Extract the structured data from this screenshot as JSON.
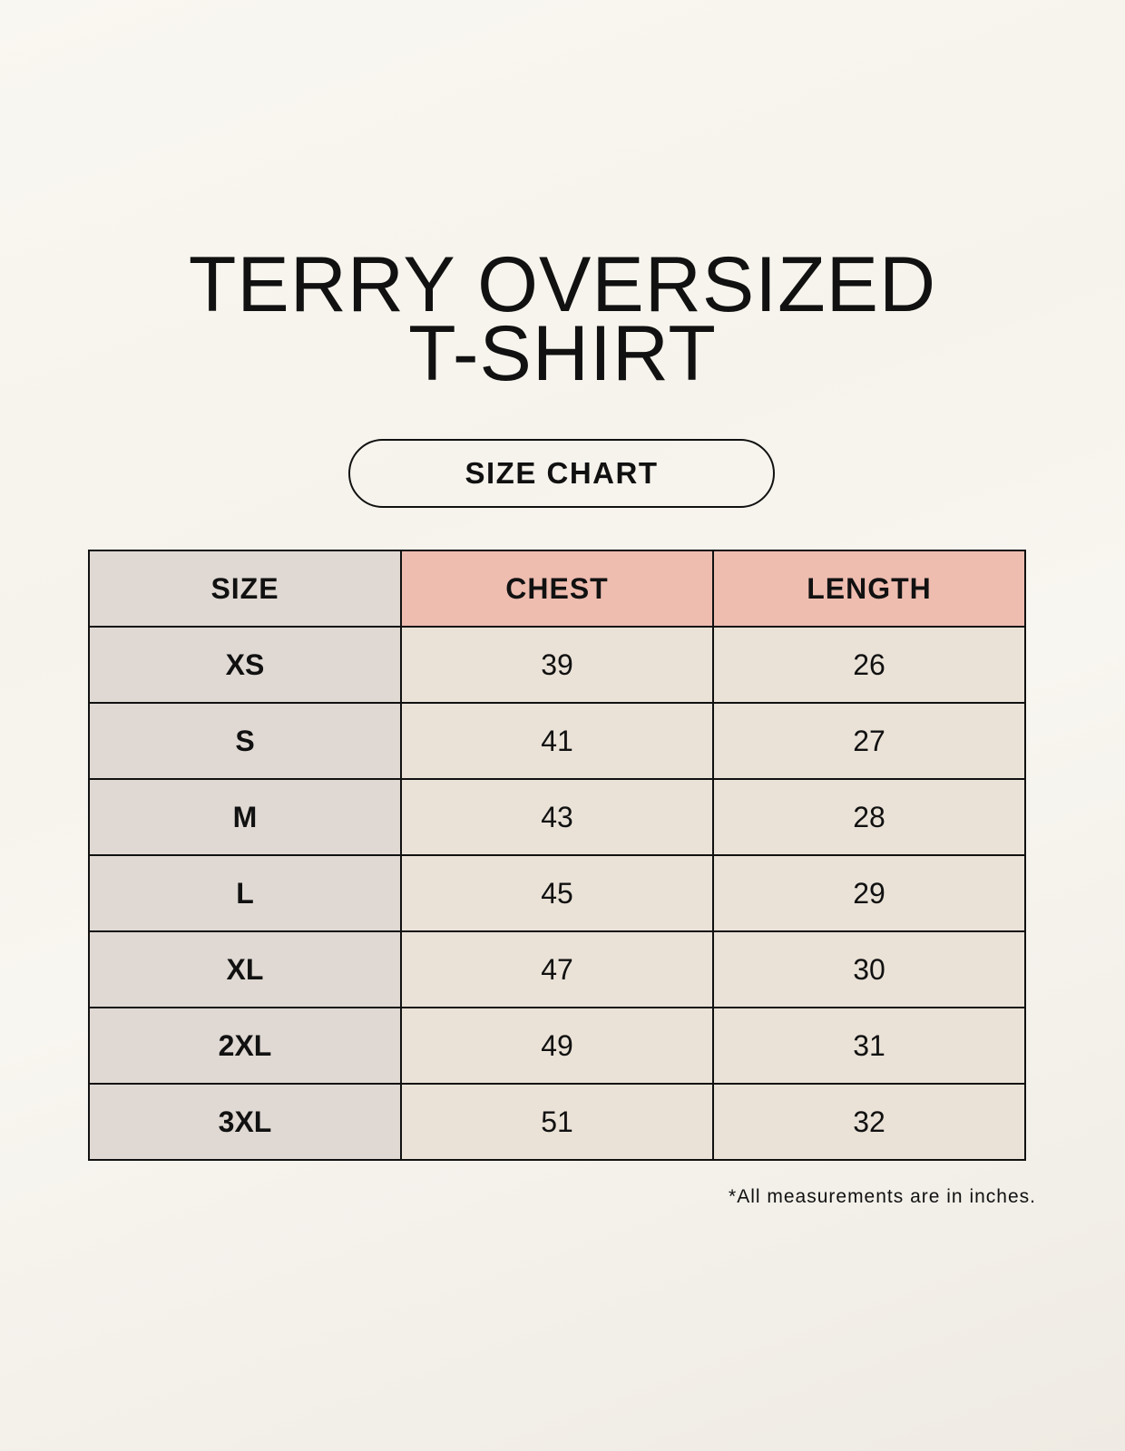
{
  "title_line1": "TERRY OVERSIZED",
  "title_line2": "T-SHIRT",
  "badge": "SIZE CHART",
  "table": {
    "headers": [
      "SIZE",
      "CHEST",
      "LENGTH"
    ],
    "rows": [
      [
        "XS",
        "39",
        "26"
      ],
      [
        "S",
        "41",
        "27"
      ],
      [
        "M",
        "43",
        "28"
      ],
      [
        "L",
        "45",
        "29"
      ],
      [
        "XL",
        "47",
        "30"
      ],
      [
        "2XL",
        "49",
        "31"
      ],
      [
        "3XL",
        "51",
        "32"
      ]
    ]
  },
  "footnote": "*All measurements are in inches.",
  "colors": {
    "size_column": "#e0d9d3",
    "header_accent": "#eebdb0",
    "cell": "#eae2d7"
  }
}
